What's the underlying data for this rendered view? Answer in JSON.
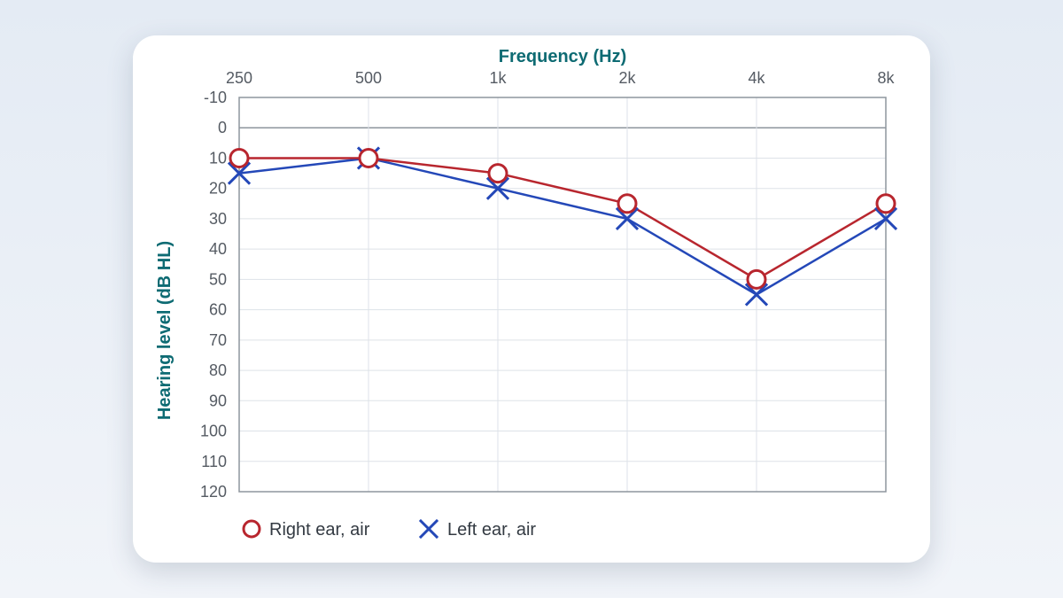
{
  "colors": {
    "title": "#0e6b73",
    "right_ear": "#b8262e",
    "left_ear": "#2448b8",
    "grid": "#dde2e8",
    "frame": "#8e959d",
    "zero_line": "#8e959d"
  },
  "chart_data": {
    "type": "line",
    "xlabel": "Frequency (Hz)",
    "ylabel": "Hearing level (dB HL)",
    "x_tick_labels": [
      "250",
      "500",
      "1k",
      "2k",
      "4k",
      "8k"
    ],
    "x": [
      250,
      500,
      1000,
      2000,
      4000,
      8000
    ],
    "x_scale": "log",
    "y_tick_labels": [
      "-10",
      "0",
      "10",
      "20",
      "30",
      "40",
      "50",
      "60",
      "70",
      "80",
      "90",
      "100",
      "110",
      "120"
    ],
    "y_ticks": [
      -10,
      0,
      10,
      20,
      30,
      40,
      50,
      60,
      70,
      80,
      90,
      100,
      110,
      120
    ],
    "ylim": [
      -10,
      120
    ],
    "y_inverted": true,
    "grid": true,
    "legend_position": "bottom-left",
    "series": [
      {
        "name": "Right ear, air",
        "marker": "circle",
        "color": "#b8262e",
        "values": [
          10,
          10,
          15,
          25,
          50,
          25
        ]
      },
      {
        "name": "Left ear, air",
        "marker": "x",
        "color": "#2448b8",
        "values": [
          15,
          10,
          20,
          30,
          55,
          30
        ]
      }
    ]
  }
}
